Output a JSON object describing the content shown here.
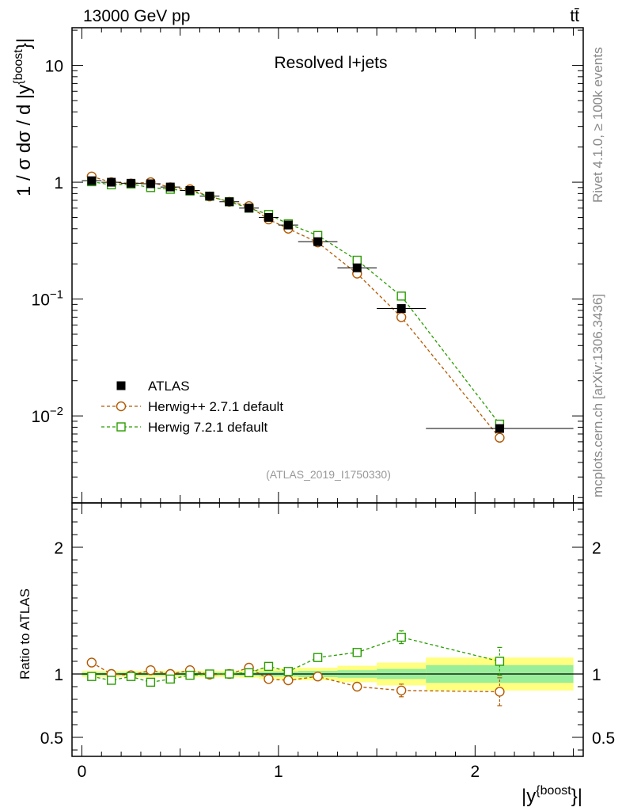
{
  "header": {
    "energy_label": "13000 GeV pp",
    "process_label": "tt̄"
  },
  "side": {
    "rivet_label": "Rivet 4.1.0, ≥ 100k events",
    "site_label": "mcplots.cern.ch [arXiv:1306.3436]"
  },
  "chart_data": [
    {
      "type": "line",
      "panel": "main",
      "title": "Resolved l+jets",
      "analysis_id": "(ATLAS_2019_I1750330)",
      "ylabel": "1 / σ dσ / d |y^{boost}|",
      "ylabel_main": "1 / σ dσ / d |y",
      "ylabel_sup": "{boost",
      "ylabel_close": "}|",
      "yscale": "log",
      "ylim": [
        0.0018,
        21
      ],
      "xlim": [
        -0.05,
        2.55
      ],
      "yticks": [
        {
          "label": "10",
          "sup": "",
          "value": 10
        },
        {
          "label": "1",
          "sup": "",
          "value": 1
        },
        {
          "label": "10",
          "sup": "−1",
          "value": 0.1
        },
        {
          "label": "10",
          "sup": "−2",
          "value": 0.01
        }
      ],
      "x": [
        0.05,
        0.15,
        0.25,
        0.35,
        0.45,
        0.55,
        0.65,
        0.75,
        0.85,
        0.95,
        1.05,
        1.2,
        1.4,
        1.625,
        2.125
      ],
      "series": [
        {
          "name": "ATLAS",
          "color": "#000000",
          "marker": "filled-square",
          "values": [
            1.03,
            1.0,
            0.98,
            0.97,
            0.91,
            0.85,
            0.76,
            0.68,
            0.6,
            0.5,
            0.43,
            0.31,
            0.185,
            0.083,
            0.0078
          ],
          "xerr": [
            0.05,
            0.05,
            0.05,
            0.05,
            0.05,
            0.05,
            0.05,
            0.05,
            0.05,
            0.05,
            0.05,
            0.1,
            0.1,
            0.125,
            0.375
          ]
        },
        {
          "name": "Herwig++ 2.7.1 default",
          "color": "#b35900",
          "marker": "open-circle",
          "values": [
            1.12,
            1.0,
            0.975,
            1.0,
            0.905,
            0.87,
            0.755,
            0.68,
            0.625,
            0.48,
            0.4,
            0.305,
            0.165,
            0.07,
            0.0065
          ]
        },
        {
          "name": "Herwig 7.2.1 default",
          "color": "#2a9c00",
          "marker": "open-square",
          "values": [
            1.01,
            0.95,
            0.965,
            0.9,
            0.87,
            0.84,
            0.76,
            0.68,
            0.6,
            0.53,
            0.44,
            0.35,
            0.215,
            0.106,
            0.0085
          ]
        }
      ],
      "legend": {
        "placement": "bottom-left",
        "entries": [
          "ATLAS",
          "Herwig++ 2.7.1 default",
          "Herwig 7.2.1 default"
        ]
      }
    },
    {
      "type": "line",
      "panel": "ratio",
      "ylabel": "Ratio to ATLAS",
      "xlabel": "|y^{boost}|",
      "xlabel_main": "|y",
      "xlabel_sup": "{boost",
      "xlabel_close": "}|",
      "ylim": [
        0.35,
        2.35
      ],
      "xlim": [
        -0.05,
        2.55
      ],
      "xticks": [
        {
          "label": "0",
          "value": 0
        },
        {
          "label": "1",
          "value": 1
        },
        {
          "label": "2",
          "value": 2
        }
      ],
      "yticks": [
        {
          "label": "2",
          "value": 2
        },
        {
          "label": "1",
          "value": 1
        },
        {
          "label": "0.5",
          "value": 0.5
        }
      ],
      "bins": [
        {
          "lo": 0.0,
          "hi": 0.1,
          "inner": 0.012,
          "outer": 0.025
        },
        {
          "lo": 0.1,
          "hi": 0.2,
          "inner": 0.012,
          "outer": 0.025
        },
        {
          "lo": 0.2,
          "hi": 0.3,
          "inner": 0.012,
          "outer": 0.025
        },
        {
          "lo": 0.3,
          "hi": 0.4,
          "inner": 0.012,
          "outer": 0.025
        },
        {
          "lo": 0.4,
          "hi": 0.5,
          "inner": 0.012,
          "outer": 0.025
        },
        {
          "lo": 0.5,
          "hi": 0.6,
          "inner": 0.012,
          "outer": 0.025
        },
        {
          "lo": 0.6,
          "hi": 0.7,
          "inner": 0.012,
          "outer": 0.025
        },
        {
          "lo": 0.7,
          "hi": 0.8,
          "inner": 0.012,
          "outer": 0.025
        },
        {
          "lo": 0.8,
          "hi": 0.9,
          "inner": 0.015,
          "outer": 0.03
        },
        {
          "lo": 0.9,
          "hi": 1.0,
          "inner": 0.02,
          "outer": 0.04
        },
        {
          "lo": 1.0,
          "hi": 1.1,
          "inner": 0.02,
          "outer": 0.045
        },
        {
          "lo": 1.1,
          "hi": 1.3,
          "inner": 0.025,
          "outer": 0.05
        },
        {
          "lo": 1.3,
          "hi": 1.5,
          "inner": 0.03,
          "outer": 0.065
        },
        {
          "lo": 1.5,
          "hi": 1.75,
          "inner": 0.04,
          "outer": 0.09
        },
        {
          "lo": 1.75,
          "hi": 2.5,
          "inner": 0.07,
          "outer": 0.13
        }
      ],
      "x": [
        0.05,
        0.15,
        0.25,
        0.35,
        0.45,
        0.55,
        0.65,
        0.75,
        0.85,
        0.95,
        1.05,
        1.2,
        1.4,
        1.625,
        2.125
      ],
      "series": [
        {
          "name": "Herwig++ 2.7.1 default",
          "color": "#b35900",
          "marker": "open-circle",
          "values": [
            1.09,
            1.0,
            0.99,
            1.03,
            1.0,
            1.03,
            0.995,
            1.0,
            1.05,
            0.96,
            0.95,
            0.98,
            0.9,
            0.87,
            0.86
          ],
          "err": [
            0.015,
            0.012,
            0.012,
            0.012,
            0.012,
            0.012,
            0.012,
            0.012,
            0.02,
            0.025,
            0.025,
            0.025,
            0.03,
            0.05,
            0.11
          ]
        },
        {
          "name": "Herwig 7.2.1 default",
          "color": "#2a9c00",
          "marker": "open-square",
          "values": [
            0.98,
            0.95,
            0.98,
            0.935,
            0.96,
            0.99,
            1.0,
            1.0,
            1.01,
            1.06,
            1.02,
            1.13,
            1.17,
            1.29,
            1.1
          ],
          "err": [
            0.015,
            0.012,
            0.012,
            0.012,
            0.012,
            0.012,
            0.012,
            0.012,
            0.02,
            0.025,
            0.025,
            0.025,
            0.03,
            0.05,
            0.11
          ]
        }
      ]
    }
  ]
}
